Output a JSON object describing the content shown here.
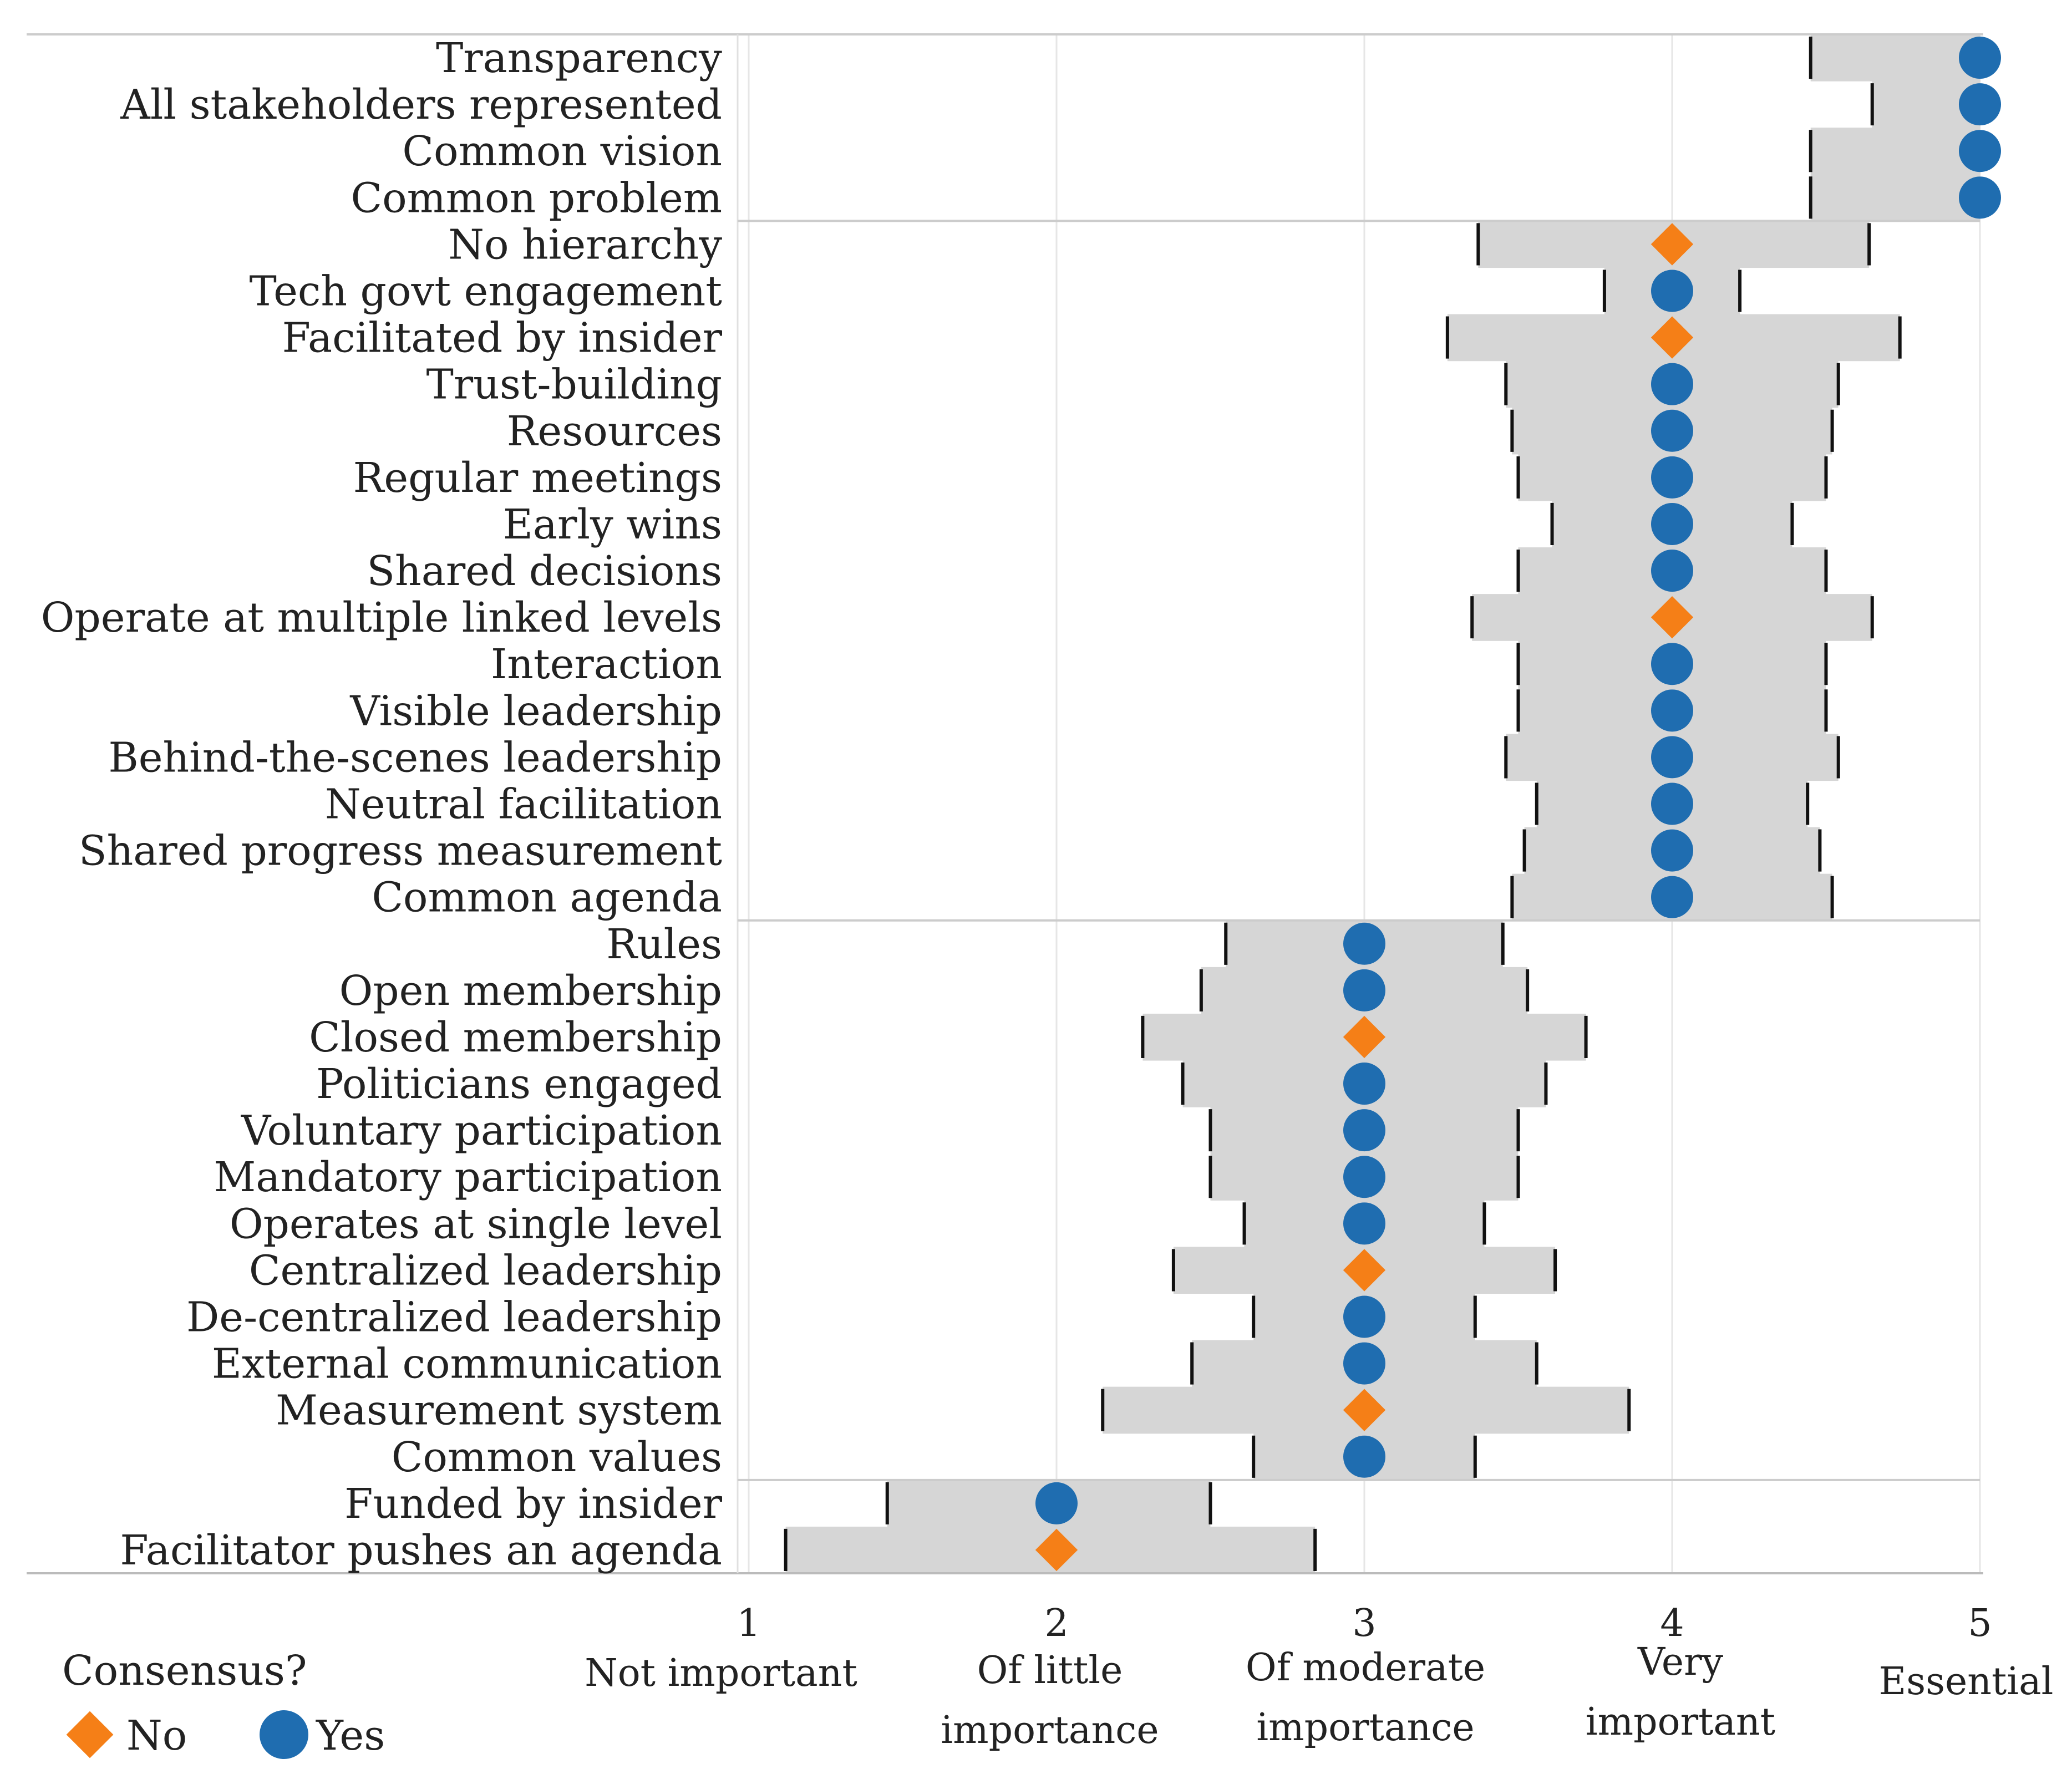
{
  "chart_data": {
    "type": "dot-range",
    "title": "",
    "xlabel": "",
    "ylabel": "",
    "xlim": [
      1,
      5
    ],
    "grid": true,
    "x_ticks": [
      {
        "value": 1,
        "number": "1",
        "desc": [
          "Not important"
        ]
      },
      {
        "value": 2,
        "number": "2",
        "desc": [
          "Of little",
          "importance"
        ]
      },
      {
        "value": 3,
        "number": "3",
        "desc": [
          "Of moderate",
          "importance"
        ]
      },
      {
        "value": 4,
        "number": "4",
        "desc": [
          "Very",
          "important"
        ]
      },
      {
        "value": 5,
        "number": "5",
        "desc": [
          "Essential"
        ]
      }
    ],
    "legend": {
      "title": "Consensus?",
      "placement": "bottom-left",
      "entries": [
        {
          "label": "No",
          "shape": "diamond",
          "color": "#F57F17"
        },
        {
          "label": "Yes",
          "shape": "circle",
          "color": "#1F6DB0"
        }
      ]
    },
    "colors": {
      "no": "#F57F17",
      "yes": "#1F6DB0",
      "band": "#D6D6D6",
      "whisker": "#111111",
      "grid": "#E6E6E6",
      "separator": "#CCCCCC"
    },
    "group_separators_after_index": [
      3,
      18,
      30
    ],
    "rows": [
      {
        "label": "Transparency",
        "median": 5,
        "low": 4.45,
        "high": 5,
        "consensus": "Yes"
      },
      {
        "label": "All stakeholders represented",
        "median": 5,
        "low": 4.65,
        "high": 5,
        "consensus": "Yes"
      },
      {
        "label": "Common vision",
        "median": 5,
        "low": 4.45,
        "high": 5,
        "consensus": "Yes"
      },
      {
        "label": "Common problem",
        "median": 5,
        "low": 4.45,
        "high": 5,
        "consensus": "Yes"
      },
      {
        "label": "No hierarchy",
        "median": 4,
        "low": 3.37,
        "high": 4.64,
        "consensus": "No"
      },
      {
        "label": "Tech govt engagement",
        "median": 4,
        "low": 3.78,
        "high": 4.22,
        "consensus": "Yes"
      },
      {
        "label": "Facilitated by insider",
        "median": 4,
        "low": 3.27,
        "high": 4.74,
        "consensus": "No"
      },
      {
        "label": "Trust-building",
        "median": 4,
        "low": 3.46,
        "high": 4.54,
        "consensus": "Yes"
      },
      {
        "label": "Resources",
        "median": 4,
        "low": 3.48,
        "high": 4.52,
        "consensus": "Yes"
      },
      {
        "label": "Regular meetings",
        "median": 4,
        "low": 3.5,
        "high": 4.5,
        "consensus": "Yes"
      },
      {
        "label": "Early wins",
        "median": 4,
        "low": 3.61,
        "high": 4.39,
        "consensus": "Yes"
      },
      {
        "label": "Shared decisions",
        "median": 4,
        "low": 3.5,
        "high": 4.5,
        "consensus": "Yes"
      },
      {
        "label": "Operate at multiple linked levels",
        "median": 4,
        "low": 3.35,
        "high": 4.65,
        "consensus": "No"
      },
      {
        "label": "Interaction",
        "median": 4,
        "low": 3.5,
        "high": 4.5,
        "consensus": "Yes"
      },
      {
        "label": "Visible leadership",
        "median": 4,
        "low": 3.5,
        "high": 4.5,
        "consensus": "Yes"
      },
      {
        "label": "Behind-the-scenes leadership",
        "median": 4,
        "low": 3.46,
        "high": 4.54,
        "consensus": "Yes"
      },
      {
        "label": "Neutral facilitation",
        "median": 4,
        "low": 3.56,
        "high": 4.44,
        "consensus": "Yes"
      },
      {
        "label": "Shared progress measurement",
        "median": 4,
        "low": 3.52,
        "high": 4.48,
        "consensus": "Yes"
      },
      {
        "label": "Common agenda",
        "median": 4,
        "low": 3.48,
        "high": 4.52,
        "consensus": "Yes"
      },
      {
        "label": "Rules",
        "median": 3,
        "low": 2.55,
        "high": 3.45,
        "consensus": "Yes"
      },
      {
        "label": "Open membership",
        "median": 3,
        "low": 2.47,
        "high": 3.53,
        "consensus": "Yes"
      },
      {
        "label": "Closed membership",
        "median": 3,
        "low": 2.28,
        "high": 3.72,
        "consensus": "No"
      },
      {
        "label": "Politicians engaged",
        "median": 3,
        "low": 2.41,
        "high": 3.59,
        "consensus": "Yes"
      },
      {
        "label": "Voluntary participation",
        "median": 3,
        "low": 2.5,
        "high": 3.5,
        "consensus": "Yes"
      },
      {
        "label": "Mandatory participation",
        "median": 3,
        "low": 2.5,
        "high": 3.5,
        "consensus": "Yes"
      },
      {
        "label": "Operates at single level",
        "median": 3,
        "low": 2.61,
        "high": 3.39,
        "consensus": "Yes"
      },
      {
        "label": "Centralized leadership",
        "median": 3,
        "low": 2.38,
        "high": 3.62,
        "consensus": "No"
      },
      {
        "label": "De-centralized leadership",
        "median": 3,
        "low": 2.64,
        "high": 3.36,
        "consensus": "Yes"
      },
      {
        "label": "External communication",
        "median": 3,
        "low": 2.44,
        "high": 3.56,
        "consensus": "Yes"
      },
      {
        "label": "Measurement system",
        "median": 3,
        "low": 2.15,
        "high": 3.86,
        "consensus": "No"
      },
      {
        "label": "Common values",
        "median": 3,
        "low": 2.64,
        "high": 3.36,
        "consensus": "Yes"
      },
      {
        "label": "Funded by insider",
        "median": 2,
        "low": 1.45,
        "high": 2.5,
        "consensus": "Yes"
      },
      {
        "label": "Facilitator pushes an agenda",
        "median": 2,
        "low": 1.12,
        "high": 2.84,
        "consensus": "No"
      }
    ]
  }
}
